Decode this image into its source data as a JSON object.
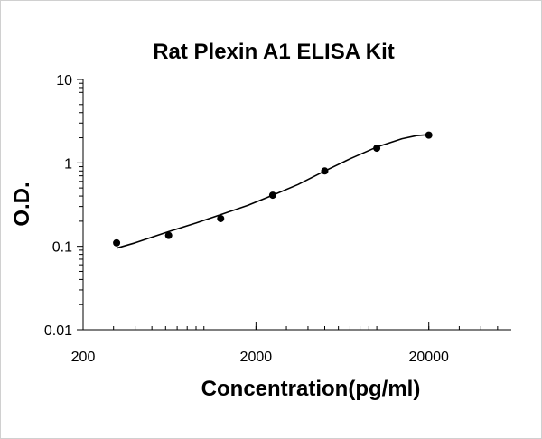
{
  "chart_data": {
    "type": "scatter",
    "title": "Rat Plexin A1 ELISA Kit",
    "xlabel": "Concentration(pg/ml)",
    "ylabel": "O.D.",
    "x_scale": "log",
    "y_scale": "log",
    "xlim": [
      200,
      60000
    ],
    "ylim": [
      0.01,
      10
    ],
    "x_ticks": [
      "200",
      "2000",
      "20000"
    ],
    "x_tick_values": [
      200,
      2000,
      20000
    ],
    "y_ticks": [
      "10",
      "1",
      "0.1",
      "0.01"
    ],
    "y_tick_values": [
      10,
      1,
      0.1,
      0.01
    ],
    "grid": false,
    "legend": "none",
    "points": {
      "x": [
        312.5,
        625,
        1250,
        2500,
        5000,
        10000,
        20000
      ],
      "y": [
        0.11,
        0.135,
        0.215,
        0.41,
        0.8,
        1.5,
        2.15
      ]
    },
    "fit_curve": {
      "x": [
        312.5,
        400,
        625,
        900,
        1250,
        1800,
        2500,
        3500,
        5000,
        7000,
        10000,
        14000,
        17000,
        20000
      ],
      "y": [
        0.095,
        0.11,
        0.15,
        0.19,
        0.24,
        0.31,
        0.41,
        0.55,
        0.8,
        1.12,
        1.55,
        1.95,
        2.12,
        2.18
      ]
    },
    "colors": {
      "marker": "#000000",
      "curve": "#000000",
      "axis": "#000000"
    }
  }
}
